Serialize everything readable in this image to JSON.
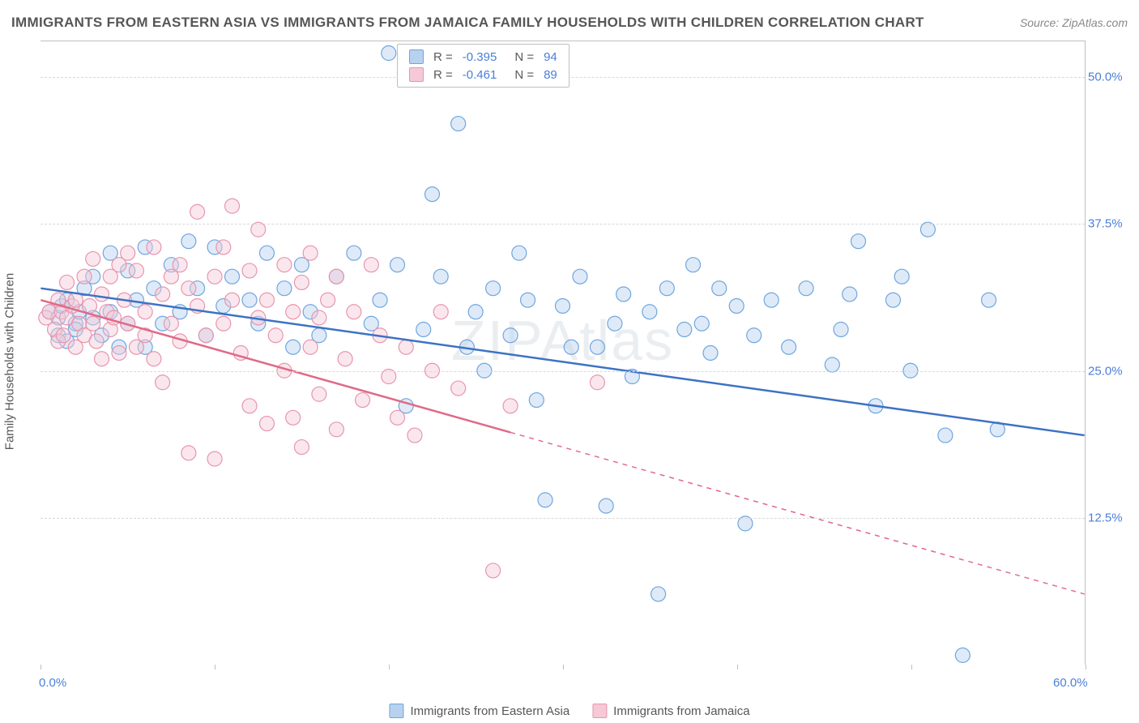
{
  "title": "IMMIGRANTS FROM EASTERN ASIA VS IMMIGRANTS FROM JAMAICA FAMILY HOUSEHOLDS WITH CHILDREN CORRELATION CHART",
  "source": "Source: ZipAtlas.com",
  "watermark": "ZIPAtlas",
  "ylabel": "Family Households with Children",
  "chart": {
    "type": "scatter",
    "background_color": "#ffffff",
    "grid_color": "#d8d8d8",
    "border_color": "#c0c0c0",
    "xlim": [
      0,
      60
    ],
    "ylim": [
      0,
      53
    ],
    "yticks": [
      12.5,
      25.0,
      37.5,
      50.0
    ],
    "ytick_labels": [
      "12.5%",
      "25.0%",
      "37.5%",
      "50.0%"
    ],
    "xtick_positions": [
      0,
      10,
      20,
      30,
      40,
      50,
      60
    ],
    "xlabel_min": "0.0%",
    "xlabel_max": "60.0%",
    "axis_text_color": "#4a7fd8",
    "label_text_color": "#565656",
    "marker_radius": 9,
    "marker_opacity": 0.45,
    "line_width": 2.5,
    "series": [
      {
        "name": "Immigrants from Eastern Asia",
        "color_fill": "#b7d1ef",
        "color_stroke": "#6fa6df",
        "line_color": "#3d72c4",
        "R": "-0.395",
        "N": "94",
        "trend": {
          "x1": 0,
          "y1": 32.0,
          "x2": 60,
          "y2": 19.5,
          "solid_until": 60
        },
        "points": [
          [
            0.5,
            30
          ],
          [
            1,
            29.5
          ],
          [
            1,
            28
          ],
          [
            1.2,
            30.5
          ],
          [
            1.5,
            27.5
          ],
          [
            1.5,
            31
          ],
          [
            2,
            29
          ],
          [
            2,
            28.5
          ],
          [
            2.2,
            30
          ],
          [
            2.5,
            32
          ],
          [
            3,
            29.5
          ],
          [
            3,
            33
          ],
          [
            3.5,
            28
          ],
          [
            4,
            30
          ],
          [
            4,
            35
          ],
          [
            4.5,
            27
          ],
          [
            5,
            33.5
          ],
          [
            5,
            29
          ],
          [
            5.5,
            31
          ],
          [
            6,
            35.5
          ],
          [
            6,
            27
          ],
          [
            6.5,
            32
          ],
          [
            7,
            29
          ],
          [
            7.5,
            34
          ],
          [
            8,
            30
          ],
          [
            8.5,
            36
          ],
          [
            9,
            32
          ],
          [
            9.5,
            28
          ],
          [
            10,
            35.5
          ],
          [
            10.5,
            30.5
          ],
          [
            11,
            33
          ],
          [
            12,
            31
          ],
          [
            12.5,
            29
          ],
          [
            13,
            35
          ],
          [
            14,
            32
          ],
          [
            14.5,
            27
          ],
          [
            15,
            34
          ],
          [
            15.5,
            30
          ],
          [
            16,
            28
          ],
          [
            17,
            33
          ],
          [
            18,
            35
          ],
          [
            19,
            29
          ],
          [
            19.5,
            31
          ],
          [
            20,
            52
          ],
          [
            20.5,
            34
          ],
          [
            21,
            22
          ],
          [
            22,
            28.5
          ],
          [
            22.5,
            40
          ],
          [
            23,
            33
          ],
          [
            24,
            46
          ],
          [
            24.5,
            27
          ],
          [
            25,
            30
          ],
          [
            25.5,
            25
          ],
          [
            26,
            32
          ],
          [
            27,
            28
          ],
          [
            27.5,
            35
          ],
          [
            28,
            31
          ],
          [
            28.5,
            22.5
          ],
          [
            29,
            14
          ],
          [
            30,
            30.5
          ],
          [
            30.5,
            27
          ],
          [
            31,
            33
          ],
          [
            32,
            27
          ],
          [
            32.5,
            13.5
          ],
          [
            33,
            29
          ],
          [
            33.5,
            31.5
          ],
          [
            34,
            24.5
          ],
          [
            35,
            30
          ],
          [
            35.5,
            6
          ],
          [
            36,
            32
          ],
          [
            37,
            28.5
          ],
          [
            37.5,
            34
          ],
          [
            38,
            29
          ],
          [
            38.5,
            26.5
          ],
          [
            39,
            32
          ],
          [
            40,
            30.5
          ],
          [
            40.5,
            12
          ],
          [
            41,
            28
          ],
          [
            42,
            31
          ],
          [
            43,
            27
          ],
          [
            44,
            32
          ],
          [
            45.5,
            25.5
          ],
          [
            46,
            28.5
          ],
          [
            46.5,
            31.5
          ],
          [
            47,
            36
          ],
          [
            48,
            22
          ],
          [
            49,
            31
          ],
          [
            49.5,
            33
          ],
          [
            50,
            25
          ],
          [
            51,
            37
          ],
          [
            52,
            19.5
          ],
          [
            53,
            0.8
          ],
          [
            54.5,
            31
          ],
          [
            55,
            20
          ]
        ]
      },
      {
        "name": "Immigrants from Jamaica",
        "color_fill": "#f5c9d6",
        "color_stroke": "#e895ad",
        "line_color": "#e06a88",
        "R": "-0.461",
        "N": "89",
        "trend": {
          "x1": 0,
          "y1": 31.0,
          "x2": 60,
          "y2": 6.0,
          "solid_until": 27
        },
        "points": [
          [
            0.3,
            29.5
          ],
          [
            0.5,
            30
          ],
          [
            0.8,
            28.5
          ],
          [
            1,
            31
          ],
          [
            1,
            27.5
          ],
          [
            1.2,
            30
          ],
          [
            1.3,
            28
          ],
          [
            1.5,
            29.5
          ],
          [
            1.5,
            32.5
          ],
          [
            1.8,
            30.5
          ],
          [
            2,
            27
          ],
          [
            2,
            31
          ],
          [
            2.2,
            29
          ],
          [
            2.5,
            33
          ],
          [
            2.5,
            28
          ],
          [
            2.8,
            30.5
          ],
          [
            3,
            29
          ],
          [
            3,
            34.5
          ],
          [
            3.2,
            27.5
          ],
          [
            3.5,
            31.5
          ],
          [
            3.5,
            26
          ],
          [
            3.8,
            30
          ],
          [
            4,
            28.5
          ],
          [
            4,
            33
          ],
          [
            4.2,
            29.5
          ],
          [
            4.5,
            34
          ],
          [
            4.5,
            26.5
          ],
          [
            4.8,
            31
          ],
          [
            5,
            29
          ],
          [
            5,
            35
          ],
          [
            5.5,
            27
          ],
          [
            5.5,
            33.5
          ],
          [
            6,
            30
          ],
          [
            6,
            28
          ],
          [
            6.5,
            35.5
          ],
          [
            6.5,
            26
          ],
          [
            7,
            31.5
          ],
          [
            7,
            24
          ],
          [
            7.5,
            29
          ],
          [
            7.5,
            33
          ],
          [
            8,
            34
          ],
          [
            8,
            27.5
          ],
          [
            8.5,
            18
          ],
          [
            8.5,
            32
          ],
          [
            9,
            30.5
          ],
          [
            9,
            38.5
          ],
          [
            9.5,
            28
          ],
          [
            10,
            17.5
          ],
          [
            10,
            33
          ],
          [
            10.5,
            35.5
          ],
          [
            10.5,
            29
          ],
          [
            11,
            31
          ],
          [
            11,
            39
          ],
          [
            11.5,
            26.5
          ],
          [
            12,
            33.5
          ],
          [
            12,
            22
          ],
          [
            12.5,
            29.5
          ],
          [
            12.5,
            37
          ],
          [
            13,
            31
          ],
          [
            13,
            20.5
          ],
          [
            13.5,
            28
          ],
          [
            14,
            34
          ],
          [
            14,
            25
          ],
          [
            14.5,
            30
          ],
          [
            14.5,
            21
          ],
          [
            15,
            32.5
          ],
          [
            15,
            18.5
          ],
          [
            15.5,
            27
          ],
          [
            15.5,
            35
          ],
          [
            16,
            29.5
          ],
          [
            16,
            23
          ],
          [
            16.5,
            31
          ],
          [
            17,
            20
          ],
          [
            17,
            33
          ],
          [
            17.5,
            26
          ],
          [
            18,
            30
          ],
          [
            18.5,
            22.5
          ],
          [
            19,
            34
          ],
          [
            19.5,
            28
          ],
          [
            20,
            24.5
          ],
          [
            20.5,
            21
          ],
          [
            21,
            27
          ],
          [
            21.5,
            19.5
          ],
          [
            22.5,
            25
          ],
          [
            23,
            30
          ],
          [
            24,
            23.5
          ],
          [
            26,
            8
          ],
          [
            27,
            22
          ],
          [
            32,
            24
          ]
        ]
      }
    ]
  },
  "legend": {
    "position": "bottom",
    "label_fontsize": 15
  }
}
